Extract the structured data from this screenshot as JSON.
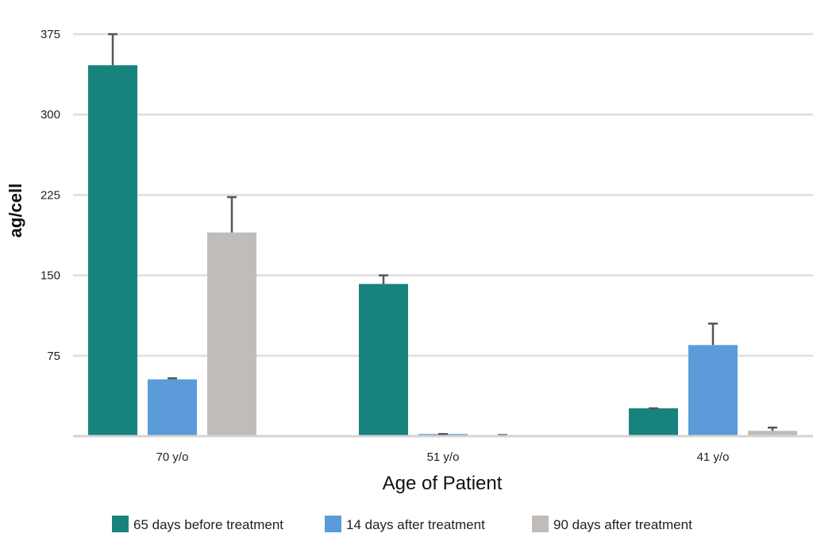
{
  "chart_data": {
    "type": "bar",
    "title": "",
    "xlabel": "Age of Patient",
    "ylabel": "ag/cell",
    "ylim": [
      0,
      375
    ],
    "yticks": [
      "75",
      "150",
      "225",
      "300",
      "375"
    ],
    "grid": true,
    "legend_position": "bottom",
    "categories": [
      "70 y/o",
      "51 y/o",
      "41 y/o"
    ],
    "series": [
      {
        "name": "65 days before treatment",
        "color": "#18837d",
        "values": [
          346,
          142,
          26
        ],
        "errors": [
          29,
          8,
          0
        ]
      },
      {
        "name": "14 days after treatment",
        "color": "#5b9bd9",
        "values": [
          53,
          2,
          85
        ],
        "errors": [
          1,
          0,
          20
        ]
      },
      {
        "name": "90 days after treatment",
        "color": "#bfbcb9",
        "values": [
          190,
          1,
          5
        ],
        "errors": [
          33,
          0,
          3
        ]
      }
    ]
  }
}
